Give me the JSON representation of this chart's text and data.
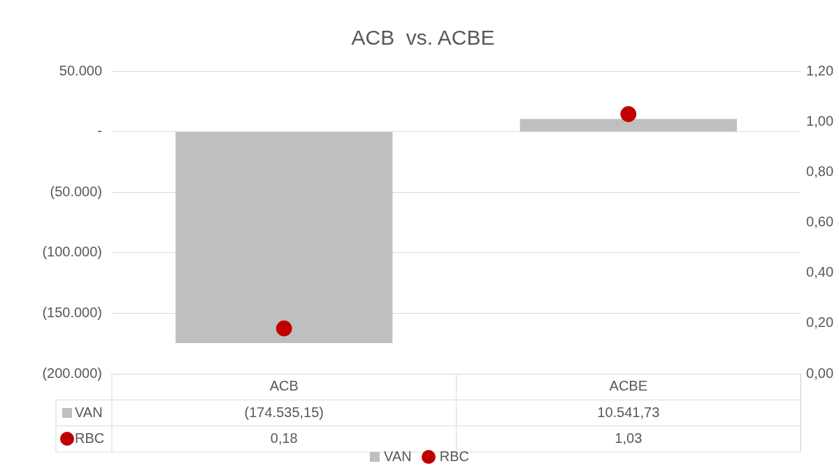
{
  "chart_data": {
    "type": "bar",
    "title": "ACB  vs. ACBE",
    "categories": [
      "ACB",
      "ACBE"
    ],
    "series": [
      {
        "name": "VAN",
        "color": "#bfbfbf",
        "values": [
          -174535.15,
          10541.73
        ],
        "value_labels": [
          "(174.535,15)",
          "10.541,73"
        ]
      },
      {
        "name": "RBC",
        "type": "scatter",
        "axis": "y2",
        "color": "#c00000",
        "marker": "circle",
        "values": [
          0.18,
          1.03
        ],
        "value_labels": [
          "0,18",
          "1,03"
        ]
      }
    ],
    "ylim": [
      -200000,
      50000
    ],
    "yticks": [
      {
        "value": 50000,
        "label": "50.000"
      },
      {
        "value": 0,
        "label": "-"
      },
      {
        "value": -50000,
        "label": "(50.000)"
      },
      {
        "value": -100000,
        "label": "(100.000)"
      },
      {
        "value": -150000,
        "label": "(150.000)"
      },
      {
        "value": -200000,
        "label": "(200.000)"
      }
    ],
    "y2lim": [
      0,
      1.2
    ],
    "y2ticks": [
      {
        "value": 0,
        "label": "0,00"
      },
      {
        "value": 0.2,
        "label": "0,20"
      },
      {
        "value": 0.4,
        "label": "0,40"
      },
      {
        "value": 0.6,
        "label": "0,60"
      },
      {
        "value": 0.8,
        "label": "0,80"
      },
      {
        "value": 1,
        "label": "1,00"
      },
      {
        "value": 1.2,
        "label": "1,20"
      }
    ],
    "grid": "y",
    "legend": "bottom"
  }
}
